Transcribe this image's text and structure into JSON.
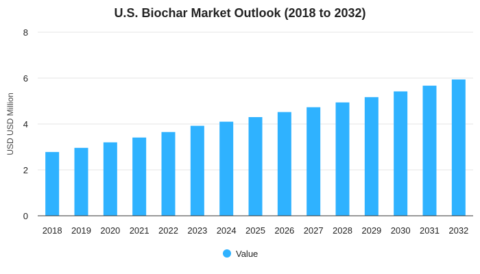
{
  "chart_data": {
    "type": "bar",
    "title": "U.S. Biochar Market Outlook (2018 to 2032)",
    "ylabel": "USD USD Million",
    "xlabel": "",
    "categories": [
      "2018",
      "2019",
      "2020",
      "2021",
      "2022",
      "2023",
      "2024",
      "2025",
      "2026",
      "2027",
      "2028",
      "2029",
      "2030",
      "2031",
      "2032"
    ],
    "series": [
      {
        "name": "Value",
        "color": "#2fb2ff",
        "values": [
          2.78,
          2.96,
          3.2,
          3.41,
          3.65,
          3.92,
          4.1,
          4.3,
          4.52,
          4.73,
          4.94,
          5.17,
          5.42,
          5.67,
          5.94
        ]
      }
    ],
    "ylim": [
      0,
      8
    ],
    "yticks": [
      "0",
      "2",
      "4",
      "6",
      "8"
    ],
    "grid": true,
    "legend_position": "bottom-center"
  }
}
